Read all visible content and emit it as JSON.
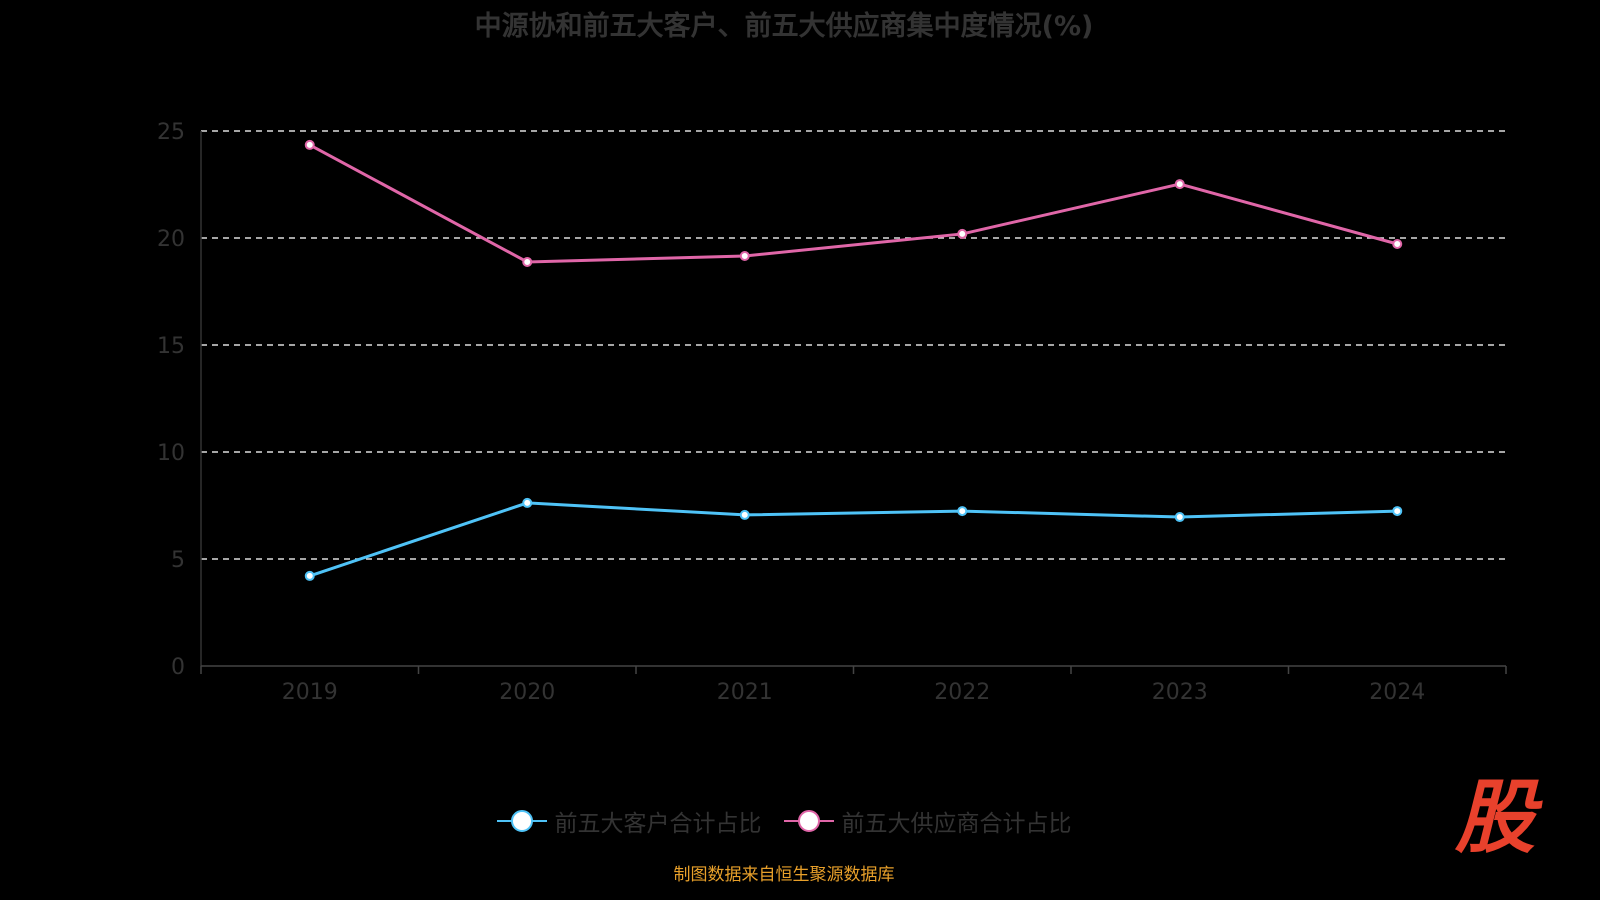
{
  "chart_data": {
    "type": "line",
    "title": "中源协和前五大客户、前五大供应商集中度情况(%)",
    "categories": [
      "2019",
      "2020",
      "2021",
      "2022",
      "2023",
      "2024"
    ],
    "ylim": [
      0,
      25
    ],
    "yticks": [
      0,
      5,
      10,
      15,
      20,
      25
    ],
    "grid": true,
    "legend_position": "bottom",
    "series": [
      {
        "name": "前五大客户合计占比",
        "color": "#4fc3f7",
        "values": [
          4.21,
          7.62,
          7.06,
          7.24,
          6.96,
          7.24
        ]
      },
      {
        "name": "前五大供应商合计占比",
        "color": "#e066a8",
        "values": [
          24.35,
          18.88,
          19.16,
          20.19,
          22.52,
          19.72
        ]
      }
    ]
  },
  "footer": "制图数据来自恒生聚源数据库",
  "logo": "股"
}
